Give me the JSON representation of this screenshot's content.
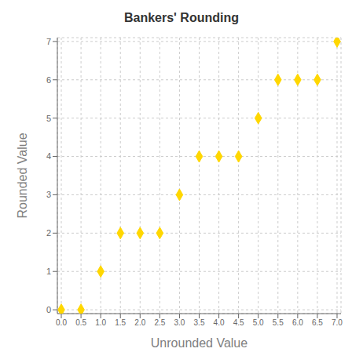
{
  "chart_data": {
    "type": "scatter",
    "title": "Bankers' Rounding",
    "xlabel": "Unrounded Value",
    "ylabel": "Rounded Value",
    "x": [
      0,
      0.5,
      1,
      1.5,
      2,
      2.5,
      3,
      3.5,
      4,
      4.5,
      5,
      5.5,
      6,
      6.5,
      7
    ],
    "values": [
      0,
      0,
      1,
      2,
      2,
      2,
      3,
      4,
      4,
      4,
      5,
      6,
      6,
      6,
      7
    ],
    "color": "#FFD700",
    "marker": "diamond",
    "xlim": [
      -0.1,
      7.1
    ],
    "ylim": [
      -0.1,
      7.1
    ],
    "xticks": [
      {
        "value": 0,
        "label": "0.0"
      },
      0.5,
      {
        "value": 1,
        "label": "1.0"
      },
      1.5,
      {
        "value": 2,
        "label": "2.0"
      },
      2.5,
      {
        "value": 3,
        "label": "3.0"
      },
      3.5,
      {
        "value": 4,
        "label": "4.0"
      },
      4.5,
      {
        "value": 5,
        "label": "5.0"
      },
      5.5,
      {
        "value": 6,
        "label": "6.0"
      },
      6.5,
      {
        "value": 7,
        "label": "7.0"
      }
    ],
    "yticks": [
      0,
      1,
      2,
      3,
      4,
      5,
      6,
      7
    ],
    "grid": true
  }
}
